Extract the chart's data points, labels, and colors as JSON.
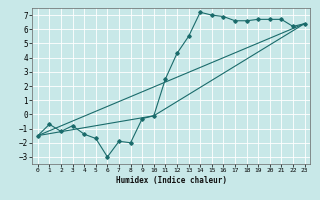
{
  "title": "",
  "xlabel": "Humidex (Indice chaleur)",
  "background_color": "#c8e8e8",
  "grid_color": "#ffffff",
  "line_color": "#1a6b6b",
  "xlim": [
    -0.5,
    23.5
  ],
  "ylim": [
    -3.5,
    7.5
  ],
  "xticks": [
    0,
    1,
    2,
    3,
    4,
    5,
    6,
    7,
    8,
    9,
    10,
    11,
    12,
    13,
    14,
    15,
    16,
    17,
    18,
    19,
    20,
    21,
    22,
    23
  ],
  "yticks": [
    -3,
    -2,
    -1,
    0,
    1,
    2,
    3,
    4,
    5,
    6,
    7
  ],
  "series1_x": [
    0,
    1,
    2,
    3,
    4,
    5,
    6,
    7,
    8,
    9,
    10,
    11,
    12,
    13,
    14,
    15,
    16,
    17,
    18,
    19,
    20,
    21,
    22,
    23
  ],
  "series1_y": [
    -1.5,
    -0.7,
    -1.2,
    -0.8,
    -1.4,
    -1.7,
    -3.0,
    -1.9,
    -2.0,
    -0.3,
    -0.1,
    2.5,
    4.3,
    5.5,
    7.2,
    7.0,
    6.9,
    6.6,
    6.6,
    6.7,
    6.7,
    6.7,
    6.2,
    6.4
  ],
  "series2_x": [
    0,
    23
  ],
  "series2_y": [
    -1.5,
    6.4
  ],
  "series3_x": [
    0,
    10,
    23
  ],
  "series3_y": [
    -1.5,
    -0.1,
    6.4
  ]
}
